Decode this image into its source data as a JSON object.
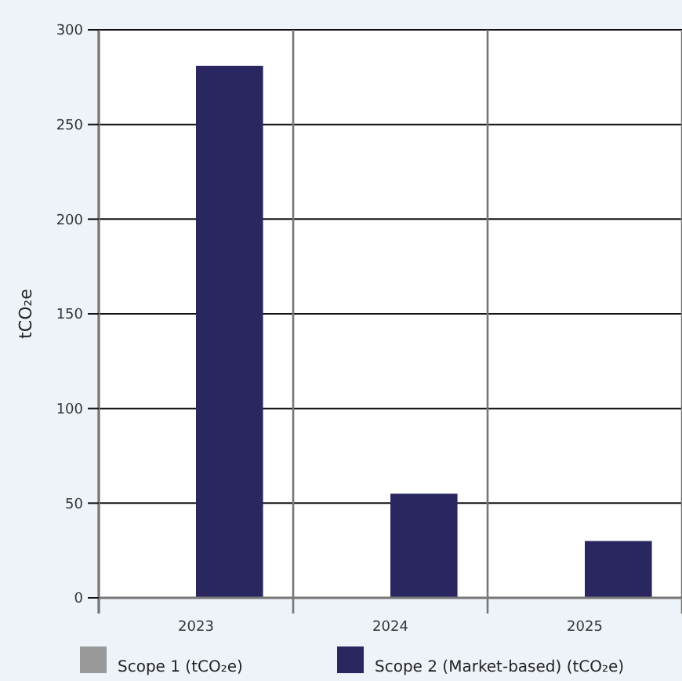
{
  "chart_data": {
    "type": "bar",
    "ylabel": "tCO₂e",
    "categories": [
      "2023",
      "2024",
      "2025"
    ],
    "series": [
      {
        "name": "Scope 1 (tCO₂e)",
        "color": "#999999",
        "values": [
          0,
          0,
          0
        ]
      },
      {
        "name": "Scope 2 (Market-based) (tCO₂e)",
        "color": "#2a2660",
        "values": [
          281,
          55,
          30
        ]
      }
    ],
    "ylim": [
      0,
      300
    ],
    "yticks": [
      0,
      50,
      100,
      150,
      200,
      250,
      300
    ],
    "grid": true,
    "legend": "bottom"
  }
}
